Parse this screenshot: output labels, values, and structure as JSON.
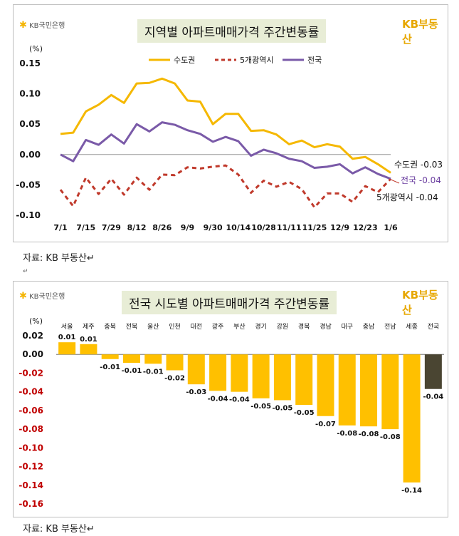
{
  "chart_data": [
    {
      "type": "line",
      "title": "지역별 아파트매매가격 주간변동률",
      "unit": "(%)",
      "ylim": [
        -0.1,
        0.15
      ],
      "yticks": [
        "0.15",
        "0.10",
        "0.05",
        "0.00",
        "-0.05",
        "-0.10"
      ],
      "x_tick_labels": [
        "7/1",
        "7/15",
        "7/29",
        "8/12",
        "8/26",
        "9/9",
        "9/30",
        "10/14",
        "10/28",
        "11/11",
        "11/25",
        "12/9",
        "12/23",
        "1/6"
      ],
      "legend_position": "top",
      "series": [
        {
          "name": "수도권",
          "color": "#f5b800",
          "style": "solid",
          "values": [
            0.034,
            0.036,
            0.071,
            0.082,
            0.098,
            0.085,
            0.117,
            0.118,
            0.125,
            0.117,
            0.089,
            0.087,
            0.05,
            0.067,
            0.067,
            0.039,
            0.04,
            0.033,
            0.017,
            0.023,
            0.012,
            0.017,
            0.013,
            -0.007,
            -0.004,
            -0.016,
            -0.03
          ],
          "end_label": "수도권 -0.03"
        },
        {
          "name": "5개광역시",
          "color": "#c0392b",
          "style": "dashed",
          "values": [
            -0.058,
            -0.085,
            -0.038,
            -0.065,
            -0.04,
            -0.066,
            -0.038,
            -0.058,
            -0.033,
            -0.034,
            -0.021,
            -0.023,
            -0.02,
            -0.018,
            -0.033,
            -0.063,
            -0.043,
            -0.053,
            -0.045,
            -0.057,
            -0.087,
            -0.064,
            -0.064,
            -0.078,
            -0.052,
            -0.062,
            -0.04
          ],
          "end_label": "5개광역시 -0.04"
        },
        {
          "name": "전국",
          "color": "#7a5aa8",
          "style": "solid",
          "values": [
            0.0,
            -0.011,
            0.024,
            0.016,
            0.033,
            0.018,
            0.05,
            0.038,
            0.053,
            0.049,
            0.04,
            0.034,
            0.021,
            0.029,
            0.022,
            -0.002,
            0.008,
            0.002,
            -0.007,
            -0.011,
            -0.022,
            -0.02,
            -0.016,
            -0.031,
            -0.021,
            -0.032,
            -0.04
          ],
          "end_label": "전국 -0.04"
        }
      ]
    },
    {
      "type": "bar",
      "title": "전국 시도별 아파트매매가격 주간변동률",
      "unit": "(%)",
      "ylim": [
        -0.16,
        0.02
      ],
      "yticks": [
        "0.02",
        "0.00",
        "-0.02",
        "-0.04",
        "-0.06",
        "-0.08",
        "-0.10",
        "-0.12",
        "-0.14",
        "-0.16"
      ],
      "categories": [
        "서울",
        "제주",
        "충북",
        "전북",
        "울산",
        "인천",
        "대전",
        "광주",
        "부산",
        "경기",
        "강원",
        "경북",
        "경남",
        "대구",
        "충남",
        "전남",
        "세종",
        "전국"
      ],
      "values": [
        0.013,
        0.011,
        -0.005,
        -0.009,
        -0.01,
        -0.017,
        -0.032,
        -0.039,
        -0.04,
        -0.047,
        -0.049,
        -0.054,
        -0.066,
        -0.076,
        -0.077,
        -0.08,
        -0.137,
        -0.037
      ],
      "value_labels": [
        "0.01",
        "0.01",
        "-0.01",
        "-0.01",
        "-0.01",
        "-0.02",
        "-0.03",
        "-0.04",
        "-0.04",
        "-0.05",
        "-0.05",
        "-0.05",
        "-0.07",
        "-0.08",
        "-0.08",
        "-0.08",
        "-0.14",
        "-0.04"
      ],
      "colors": {
        "bar": "#ffc000",
        "highlight": "#4a4532",
        "negative_tick": "#c00000"
      }
    }
  ],
  "logo": {
    "text": "KB국민은행",
    "brand": "KB부동산"
  },
  "captions": {
    "source1": "자료: KB 부동산↵",
    "blank": "↵",
    "source2": "자료: KB 부동산↵"
  }
}
